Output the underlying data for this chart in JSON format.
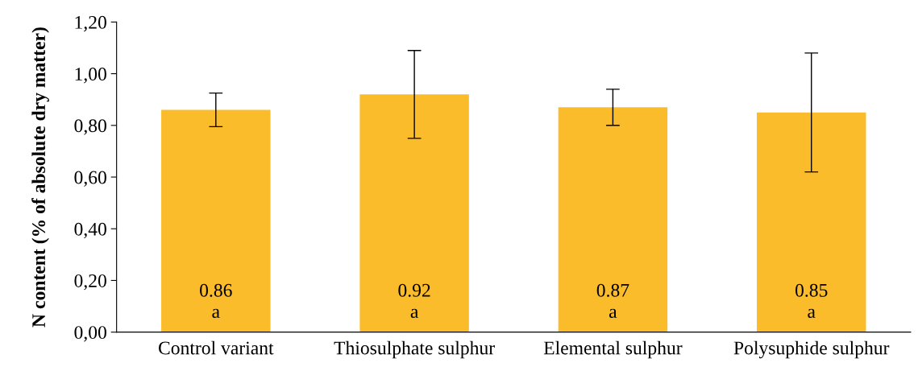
{
  "chart_data": {
    "type": "bar",
    "ylabel": "N content (% of absolute dry matter)",
    "categories": [
      "Control variant",
      "Thiosulphate sulphur",
      "Elemental sulphur",
      "Polysuphide sulphur"
    ],
    "values": [
      0.86,
      0.92,
      0.87,
      0.85
    ],
    "errors": [
      0.065,
      0.17,
      0.07,
      0.23
    ],
    "value_labels": [
      "0.86\na",
      "0.92\na",
      "0.87\na",
      "0.85\na"
    ],
    "color": "#fbbc2b",
    "ylim": [
      0,
      1.2
    ],
    "yticks": [
      {
        "value": 0,
        "label": "0,00"
      },
      {
        "value": 0.2,
        "label": "0,20"
      },
      {
        "value": 0.4,
        "label": "0,40"
      },
      {
        "value": 0.6,
        "label": "0,60"
      },
      {
        "value": 0.8,
        "label": "0,80"
      },
      {
        "value": 1.0,
        "label": "1,00"
      },
      {
        "value": 1.2,
        "label": "1,20"
      }
    ],
    "grid": false,
    "legend": false
  }
}
